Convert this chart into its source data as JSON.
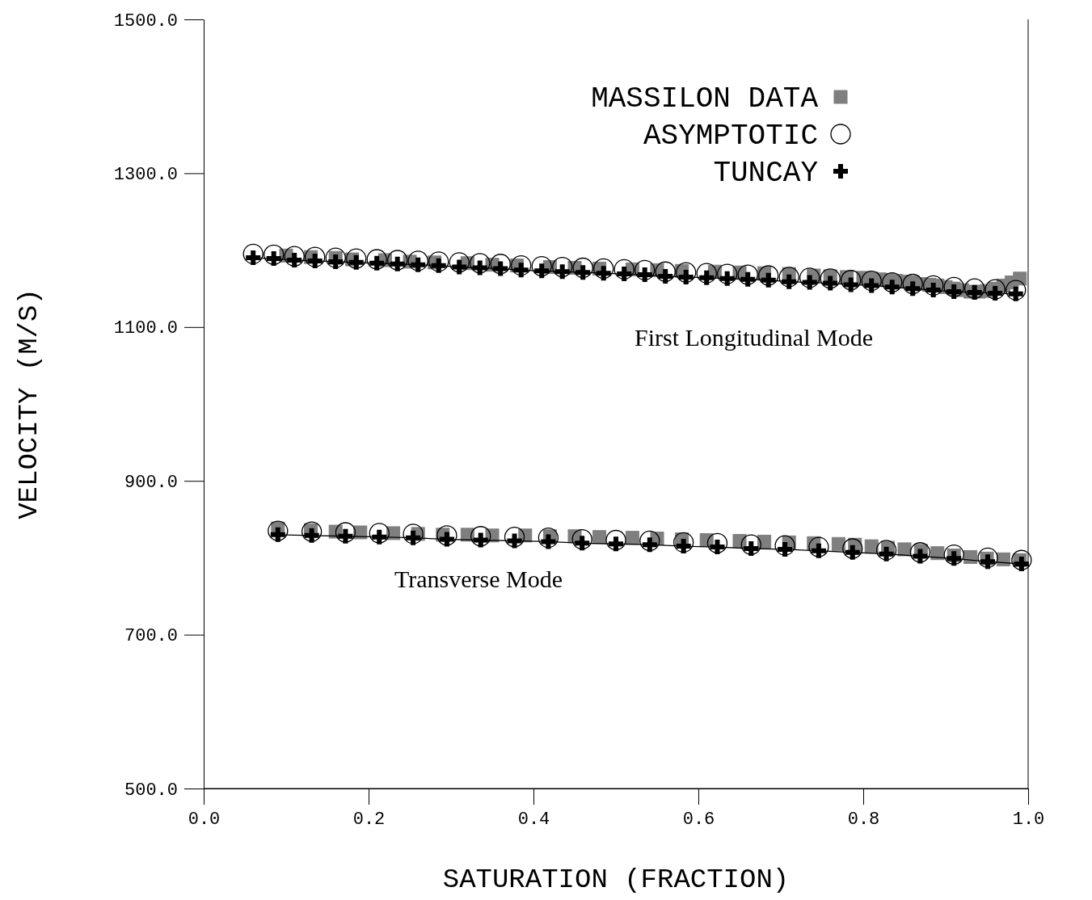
{
  "chart_data": {
    "type": "scatter",
    "xlabel": "SATURATION (FRACTION)",
    "ylabel": "VELOCITY (M/S)",
    "xlim": [
      0,
      1
    ],
    "xticks": [
      {
        "value": 0,
        "label": "0.0"
      },
      {
        "value": 0.2,
        "label": "0.2"
      },
      {
        "value": 0.4,
        "label": "0.4"
      },
      {
        "value": 0.6,
        "label": "0.6"
      },
      {
        "value": 0.8,
        "label": "0.8"
      },
      {
        "value": 1,
        "label": "1.0"
      }
    ],
    "ylim": [
      500,
      1500
    ],
    "yticks": [
      {
        "value": 500,
        "label": "500.0"
      },
      {
        "value": 700,
        "label": "700.0"
      },
      {
        "value": 900,
        "label": "900.0"
      },
      {
        "value": 1100,
        "label": "1100.0"
      },
      {
        "value": 1300,
        "label": "1300.0"
      },
      {
        "value": 1500,
        "label": "1500.0"
      }
    ],
    "grid": false,
    "legend": "top right",
    "annotations": [
      "First Longitudinal Mode",
      "Transverse Mode"
    ],
    "series": [
      {
        "name": "MASSILON DATA",
        "marker": "square",
        "color": "#7f7f7f",
        "x": [
          0.1,
          0.13,
          0.16,
          0.18,
          0.22,
          0.25,
          0.28,
          0.32,
          0.35,
          0.38,
          0.42,
          0.45,
          0.48,
          0.52,
          0.55,
          0.58,
          0.62,
          0.65,
          0.68,
          0.71,
          0.74,
          0.76,
          0.78,
          0.8,
          0.81,
          0.82,
          0.83,
          0.84,
          0.85,
          0.86,
          0.87,
          0.88,
          0.89,
          0.9,
          0.91,
          0.92,
          0.93,
          0.94,
          0.95,
          0.96,
          0.97,
          0.98,
          0.99,
          null,
          0.09,
          0.13,
          0.16,
          0.19,
          0.23,
          0.26,
          0.29,
          0.32,
          0.35,
          0.39,
          0.42,
          0.45,
          0.48,
          0.52,
          0.55,
          0.58,
          0.61,
          0.65,
          0.68,
          0.71,
          0.74,
          0.77,
          0.79,
          0.81,
          0.83,
          0.85,
          0.87,
          0.89,
          0.91,
          0.93,
          0.95,
          0.97,
          0.99
        ],
        "values": [
          1193,
          1191,
          1190,
          1188,
          1187,
          1185,
          1184,
          1183,
          1181,
          1180,
          1178,
          1177,
          1176,
          1175,
          1174,
          1173,
          1172,
          1171,
          1170,
          1169,
          1167,
          1166,
          1165,
          1164,
          1163,
          1162,
          1161,
          1160,
          1159,
          1158,
          1156,
          1155,
          1154,
          1152,
          1150,
          1148,
          1146,
          1146,
          1147,
          1150,
          1154,
          1158,
          1163,
          null,
          838,
          836,
          834,
          833,
          832,
          831,
          830,
          830,
          829,
          829,
          828,
          828,
          827,
          826,
          825,
          824,
          823,
          822,
          821,
          820,
          819,
          818,
          817,
          815,
          813,
          811,
          809,
          806,
          803,
          801,
          799,
          798,
          797
        ]
      },
      {
        "name": "ASYMPTOTIC",
        "marker": "circle",
        "color": "#000000",
        "x": [
          0.06,
          0.085,
          0.11,
          0.135,
          0.16,
          0.185,
          0.21,
          0.235,
          0.26,
          0.285,
          0.31,
          0.335,
          0.36,
          0.385,
          0.41,
          0.435,
          0.46,
          0.485,
          0.51,
          0.535,
          0.56,
          0.585,
          0.61,
          0.635,
          0.66,
          0.685,
          0.71,
          0.735,
          0.76,
          0.785,
          0.81,
          0.835,
          0.86,
          0.885,
          0.91,
          0.935,
          0.96,
          0.985,
          null,
          0.09,
          0.131,
          0.172,
          0.213,
          0.254,
          0.295,
          0.336,
          0.377,
          0.418,
          0.459,
          0.5,
          0.541,
          0.582,
          0.623,
          0.664,
          0.705,
          0.746,
          0.787,
          0.828,
          0.869,
          0.91,
          0.951,
          0.992
        ],
        "values": [
          1195,
          1194,
          1192,
          1191,
          1190,
          1189,
          1188,
          1187,
          1186,
          1185,
          1184,
          1183,
          1182,
          1180,
          1179,
          1178,
          1177,
          1176,
          1175,
          1174,
          1172,
          1171,
          1170,
          1169,
          1168,
          1167,
          1165,
          1164,
          1163,
          1161,
          1160,
          1158,
          1156,
          1154,
          1152,
          1150,
          1149,
          1148,
          null,
          835,
          834,
          833,
          832,
          831,
          829,
          828,
          827,
          826,
          824,
          823,
          822,
          820,
          819,
          817,
          816,
          814,
          812,
          810,
          807,
          804,
          800,
          797
        ]
      },
      {
        "name": "TUNCAY",
        "type": "line",
        "marker": "cross",
        "color": "#000000",
        "x": [
          0.06,
          0.085,
          0.11,
          0.135,
          0.16,
          0.185,
          0.21,
          0.235,
          0.26,
          0.285,
          0.31,
          0.335,
          0.36,
          0.385,
          0.41,
          0.435,
          0.46,
          0.485,
          0.51,
          0.535,
          0.56,
          0.585,
          0.61,
          0.635,
          0.66,
          0.685,
          0.71,
          0.735,
          0.76,
          0.785,
          0.81,
          0.835,
          0.86,
          0.885,
          0.91,
          0.935,
          0.96,
          0.985,
          null,
          0.09,
          0.131,
          0.172,
          0.213,
          0.254,
          0.295,
          0.336,
          0.377,
          0.418,
          0.459,
          0.5,
          0.541,
          0.582,
          0.623,
          0.664,
          0.705,
          0.746,
          0.787,
          0.828,
          0.869,
          0.91,
          0.951,
          0.992
        ],
        "values": [
          1190,
          1189,
          1187,
          1186,
          1185,
          1184,
          1183,
          1182,
          1181,
          1180,
          1178,
          1177,
          1176,
          1174,
          1173,
          1172,
          1171,
          1170,
          1169,
          1168,
          1166,
          1165,
          1164,
          1163,
          1162,
          1161,
          1159,
          1158,
          1157,
          1155,
          1154,
          1152,
          1150,
          1148,
          1146,
          1145,
          1144,
          1143,
          null,
          830,
          829,
          828,
          827,
          826,
          824,
          823,
          822,
          821,
          819,
          818,
          817,
          815,
          814,
          812,
          811,
          809,
          807,
          805,
          802,
          799,
          795,
          792
        ]
      }
    ]
  }
}
